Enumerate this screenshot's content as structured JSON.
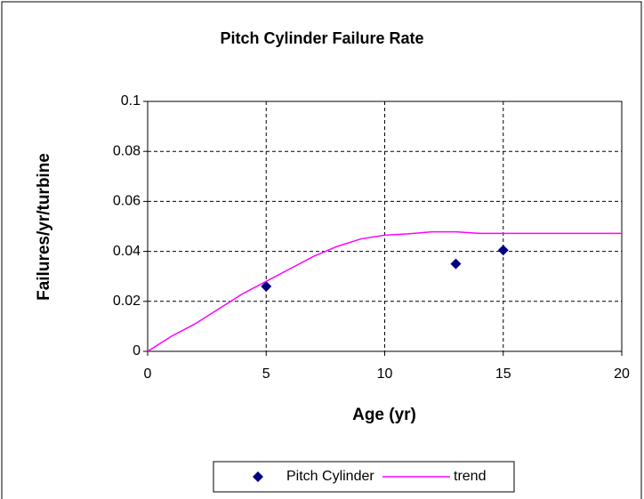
{
  "chart_data": {
    "type": "scatter",
    "title": "Pitch Cylinder Failure Rate",
    "xlabel": "Age (yr)",
    "ylabel": "Failures/yr/turbine",
    "xlim": [
      0,
      20
    ],
    "xticks": [
      0,
      5,
      10,
      15,
      20
    ],
    "ylim": [
      0,
      0.1
    ],
    "yticks": [
      0,
      0.02,
      0.04,
      0.06,
      0.08,
      0.1
    ],
    "grid": true,
    "legend": "bottom",
    "series": [
      {
        "name": "Pitch Cylinder",
        "kind": "marker",
        "color": "#000080",
        "x": [
          5,
          13,
          15
        ],
        "values": [
          0.026,
          0.035,
          0.0405
        ]
      },
      {
        "name": "trend",
        "kind": "line",
        "color": "#ff00ff",
        "x": [
          0,
          1,
          2,
          3,
          4,
          5,
          6,
          7,
          8,
          9,
          10,
          11,
          12,
          13,
          14,
          15,
          16,
          17,
          18,
          19,
          20
        ],
        "values": [
          0,
          0.006,
          0.011,
          0.017,
          0.023,
          0.028,
          0.033,
          0.038,
          0.042,
          0.045,
          0.0465,
          0.047,
          0.0478,
          0.0478,
          0.0472,
          0.0472,
          0.0472,
          0.0472,
          0.0472,
          0.0472,
          0.0472
        ]
      }
    ]
  }
}
